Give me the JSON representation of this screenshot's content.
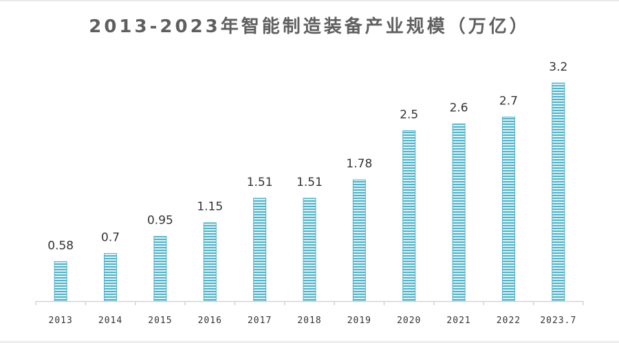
{
  "chart_data": {
    "type": "bar",
    "title": "2013-2023年智能制造装备产业规模（万亿）",
    "categories": [
      "2013",
      "2014",
      "2015",
      "2016",
      "2017",
      "2018",
      "2019",
      "2020",
      "2021",
      "2022",
      "2023.7"
    ],
    "values": [
      0.58,
      0.7,
      0.95,
      1.15,
      1.51,
      1.51,
      1.78,
      2.5,
      2.6,
      2.7,
      3.2
    ],
    "value_labels": [
      "0.58",
      "0.7",
      "0.95",
      "1.15",
      "1.51",
      "1.51",
      "1.78",
      "2.5",
      "2.6",
      "2.7",
      "3.2"
    ],
    "xlabel": "",
    "ylabel": "",
    "ylim": [
      0,
      3.2
    ],
    "grid": false,
    "bar_color": "#4fb3c9",
    "bar_stripe_color": "#dff2f6"
  }
}
